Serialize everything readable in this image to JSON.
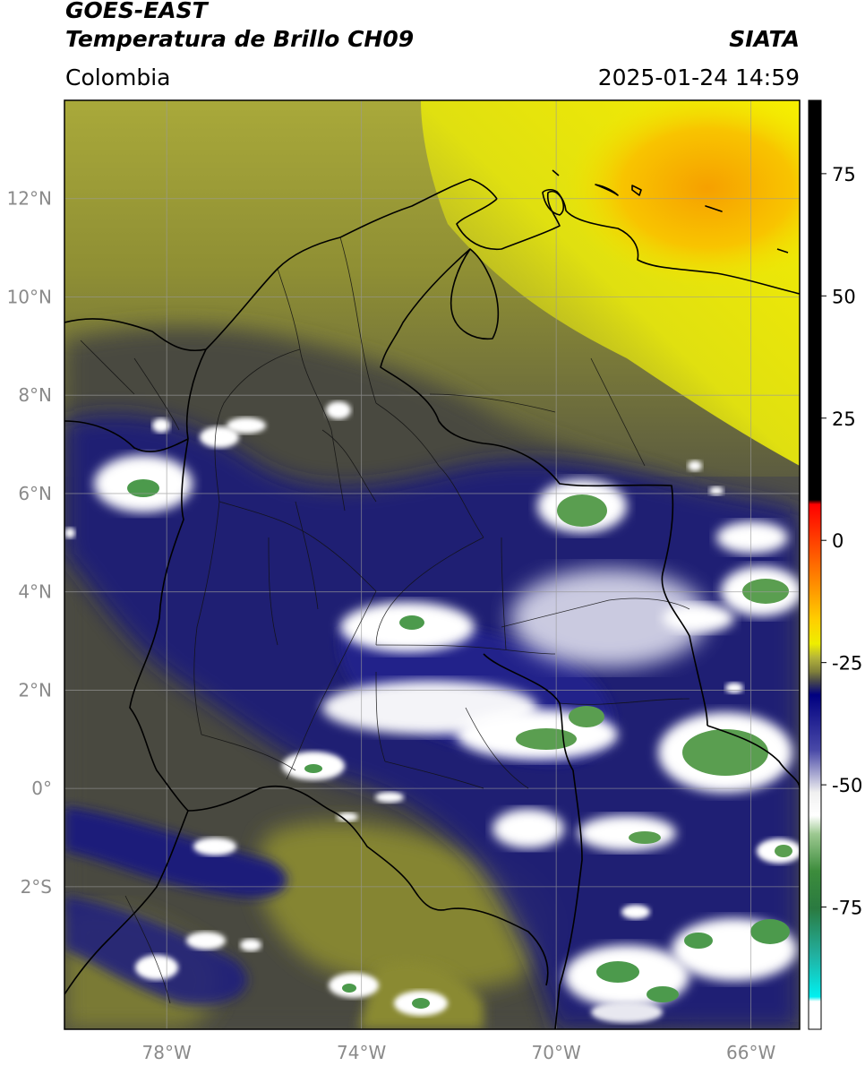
{
  "header": {
    "satellite": "GOES-EAST",
    "product": "Temperatura de Brillo CH09",
    "brand": "SIATA",
    "region": "Colombia",
    "timestamp": "2025-01-24 14:59"
  },
  "map": {
    "lon_range": [
      -80.1,
      -65.0
    ],
    "lat_range": [
      -4.9,
      14.0
    ],
    "lon_ticks": [
      {
        "value": -78,
        "label": "78°W"
      },
      {
        "value": -74,
        "label": "74°W"
      },
      {
        "value": -70,
        "label": "70°W"
      },
      {
        "value": -66,
        "label": "66°W"
      }
    ],
    "lat_ticks": [
      {
        "value": 12,
        "label": "12°N"
      },
      {
        "value": 10,
        "label": "10°N"
      },
      {
        "value": 8,
        "label": "8°N"
      },
      {
        "value": 6,
        "label": "6°N"
      },
      {
        "value": 4,
        "label": "4°N"
      },
      {
        "value": 2,
        "label": "2°N"
      },
      {
        "value": 0,
        "label": "0°"
      },
      {
        "value": -2,
        "label": "2°S"
      }
    ],
    "colors": {
      "warm_yellow": "#e8e800",
      "orange": "#f6a800",
      "olive": "#8b8b2e",
      "gray": "#4d4d4d",
      "navy": "#14147a",
      "white": "#ffffff",
      "green": "#3c8c3c"
    }
  },
  "colorbar": {
    "range": [
      -100,
      90
    ],
    "ticks": [
      {
        "value": 75,
        "label": "75"
      },
      {
        "value": 50,
        "label": "50"
      },
      {
        "value": 25,
        "label": "25"
      },
      {
        "value": 0,
        "label": "0"
      },
      {
        "value": -25,
        "label": "-25"
      },
      {
        "value": -50,
        "label": "-50"
      },
      {
        "value": -75,
        "label": "-75"
      }
    ]
  }
}
